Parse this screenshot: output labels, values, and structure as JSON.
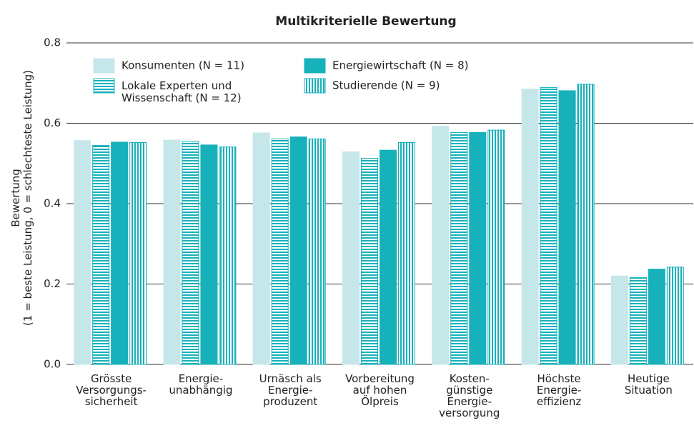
{
  "chart_data": {
    "type": "bar",
    "title": "Multikriterielle Bewertung",
    "ylabel": "Bewertung\n(1 = beste Leistung, 0 = schlechteste Leistung)",
    "categories": [
      "Grösste\nVersorgungs-\nsicherheit",
      "Energie-\nunabhängig",
      "Urnäsch als\nEnergie-\nproduzent",
      "Vorbereitung\nauf hohen\nÖlpreis",
      "Kosten-\ngünstige\nEnergie-\nversorgung",
      "Höchste\nEnergie-\neffizienz",
      "Heutige\nSituation"
    ],
    "series": [
      {
        "name": "Konsumenten (N = 11)",
        "color": "#c6e7e9",
        "pattern": "solid",
        "values": [
          0.557,
          0.558,
          0.576,
          0.529,
          0.593,
          0.685,
          0.22
        ]
      },
      {
        "name": "Lokale Experten und\nWissenschaft (N = 12)",
        "color": "#17b1bb",
        "pattern": "horizontal",
        "values": [
          0.545,
          0.555,
          0.561,
          0.513,
          0.577,
          0.689,
          0.216
        ]
      },
      {
        "name": "Energiewirtschaft (N = 8)",
        "color": "#17b1bb",
        "pattern": "solid",
        "values": [
          0.553,
          0.546,
          0.566,
          0.533,
          0.577,
          0.681,
          0.237
        ]
      },
      {
        "name": "Studierende (N = 9)",
        "color": "#17b1bb",
        "pattern": "vertical",
        "values": [
          0.552,
          0.541,
          0.561,
          0.552,
          0.583,
          0.697,
          0.242
        ]
      }
    ],
    "ylim": [
      0,
      0.8
    ],
    "yticks": [
      {
        "value": 0,
        "label": "0.0"
      },
      0.2,
      0.4,
      0.6,
      0.8
    ],
    "grid": true
  }
}
